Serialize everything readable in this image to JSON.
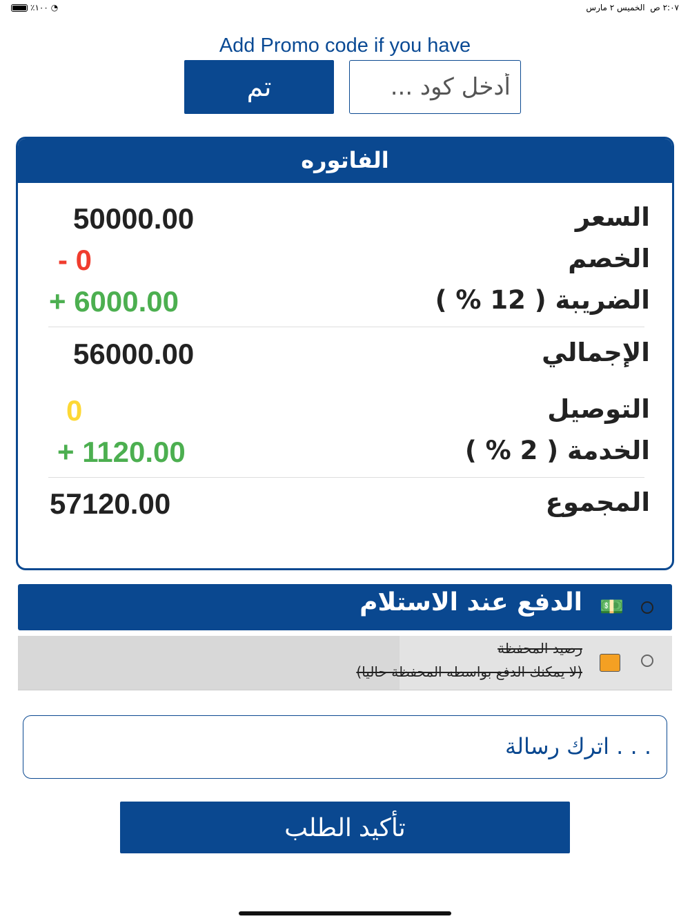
{
  "status_bar": {
    "time": "٢:٠٧ ص",
    "date": "الخميس ٢ مارس",
    "battery": "٪١٠٠"
  },
  "promo": {
    "title": "Add Promo code if you have",
    "button": "تم",
    "placeholder": "أدخل كود ..."
  },
  "invoice": {
    "title": "الفاتوره",
    "rows": [
      {
        "label": "السعر",
        "value": "50000.00",
        "color": "#222222"
      },
      {
        "label": "الخصم",
        "value": "- 0",
        "color": "#f03c2e"
      },
      {
        "label": "الضريبة ( 12 % )",
        "value": "+ 6000.00",
        "color": "#4caf50"
      },
      {
        "label": "الإجمالي",
        "value": "56000.00",
        "color": "#222222"
      },
      {
        "label": "التوصيل",
        "value": "0",
        "color": "#fdd835"
      },
      {
        "label": "الخدمة ( 2 % )",
        "value": "+ 1120.00",
        "color": "#4caf50"
      },
      {
        "label": "المجموع",
        "value": "57120.00",
        "color": "#222222"
      }
    ]
  },
  "payment": {
    "cod": {
      "label": "الدفع عند الاستلام",
      "icon": "cash-hand-icon",
      "selected": false
    },
    "wallet": {
      "label": "رصيد المحفظة",
      "note": "(لا يمكنك الدفع بواسطه المحفظة حاليا)",
      "icon": "wallet-icon",
      "disabled": true,
      "selected": false
    }
  },
  "message": {
    "placeholder": ". . . اترك رسالة"
  },
  "confirm": {
    "label": "تأكيد الطلب"
  },
  "colors": {
    "primary": "#0a4890"
  }
}
